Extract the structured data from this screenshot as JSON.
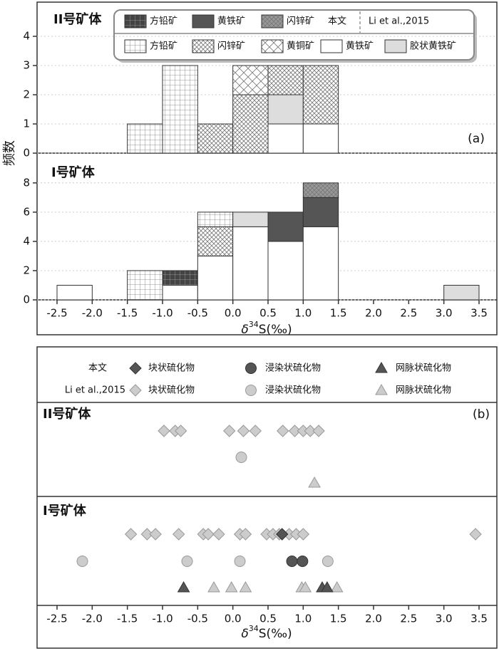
{
  "chart_data": [
    {
      "type": "histogram",
      "label": "(a)",
      "ylabel": "频数",
      "xlabel": {
        "symbol": "δ",
        "sup": "34",
        "unit": "S(‰)"
      },
      "sources": [
        "本文",
        "Li et al.,2015"
      ],
      "bins": [
        -2.5,
        -2,
        -1.5,
        -1,
        -0.5,
        0,
        0.5,
        1,
        1.5,
        2,
        2.5,
        3,
        3.5
      ],
      "xlim": [
        -2.8,
        3.75
      ],
      "xticks": [
        -2.5,
        {
          "value": -2,
          "label": "-2.0"
        },
        -1.5,
        {
          "value": -1,
          "label": "-1.0"
        },
        -0.5,
        {
          "value": 0,
          "label": "0.0"
        },
        0.5,
        {
          "value": 1,
          "label": "1.0"
        },
        1.5,
        {
          "value": 2,
          "label": "2.0"
        },
        2.5,
        {
          "value": 3,
          "label": "3.0"
        },
        3.5
      ],
      "grid": true,
      "series": [
        {
          "name": "方铅矿",
          "source": 0,
          "color": "#444444",
          "pattern": "grid"
        },
        {
          "name": "黄铁矿",
          "source": 0,
          "color": "#555555",
          "pattern": "solid"
        },
        {
          "name": "闪锌矿",
          "source": 0,
          "color": "#999999",
          "pattern": "xdense"
        },
        {
          "name": "方铅矿",
          "source": 1,
          "color": "#ffffff",
          "pattern": "grid"
        },
        {
          "name": "闪锌矿",
          "source": 1,
          "color": "#ffffff",
          "pattern": "xdense"
        },
        {
          "name": "黄铜矿",
          "source": 1,
          "color": "#ffffff",
          "pattern": "xsparse"
        },
        {
          "name": "黄铁矿",
          "source": 1,
          "color": "#ffffff",
          "pattern": "solid"
        },
        {
          "name": "胶状黄铁矿",
          "source": 1,
          "color": "#dddddd",
          "pattern": "solid"
        }
      ],
      "panels": [
        {
          "title": "II号矿体",
          "ylim": [
            0,
            5
          ],
          "yticks": [
            0,
            1,
            2,
            3,
            4
          ],
          "series": [
            {
              "values": [
                0,
                0,
                0,
                0,
                0,
                0,
                0,
                0,
                0,
                0,
                0,
                0
              ]
            },
            {
              "values": [
                0,
                0,
                0,
                0,
                0,
                0,
                0,
                0,
                0,
                0,
                0,
                0
              ]
            },
            {
              "values": [
                0,
                0,
                0,
                0,
                0,
                0,
                0,
                0,
                0,
                0,
                0,
                0
              ]
            },
            {
              "values": [
                0,
                0,
                1,
                3,
                0,
                0,
                0,
                0,
                0,
                0,
                0,
                0
              ]
            },
            {
              "values": [
                0,
                0,
                0,
                0,
                1,
                2,
                1,
                2,
                0,
                0,
                0,
                0
              ]
            },
            {
              "values": [
                0,
                0,
                0,
                0,
                0,
                1,
                0,
                0,
                0,
                0,
                0,
                0
              ]
            },
            {
              "values": [
                0,
                0,
                0,
                0,
                0,
                0,
                1,
                1,
                0,
                0,
                0,
                0
              ]
            },
            {
              "values": [
                0,
                0,
                0,
                0,
                0,
                0,
                1,
                0,
                0,
                0,
                0,
                0
              ]
            }
          ]
        },
        {
          "title": "I号矿体",
          "ylim": [
            0,
            9.5
          ],
          "yticks": [
            0,
            2,
            4,
            6,
            8
          ],
          "series": [
            {
              "values": [
                0,
                0,
                0,
                1,
                0,
                0,
                0,
                0,
                0,
                0,
                0,
                0
              ]
            },
            {
              "values": [
                0,
                0,
                0,
                0,
                0,
                0,
                2,
                2,
                0,
                0,
                0,
                0
              ]
            },
            {
              "values": [
                0,
                0,
                0,
                0,
                0,
                0,
                0,
                1,
                0,
                0,
                0,
                0
              ]
            },
            {
              "values": [
                0,
                0,
                2,
                0,
                1,
                0,
                0,
                0,
                0,
                0,
                0,
                0
              ]
            },
            {
              "values": [
                0,
                0,
                0,
                0,
                2,
                0,
                0,
                0,
                0,
                0,
                0,
                0
              ]
            },
            {
              "values": [
                0,
                0,
                0,
                0,
                0,
                0,
                0,
                0,
                0,
                0,
                0,
                0
              ]
            },
            {
              "values": [
                1,
                0,
                0,
                1,
                3,
                5,
                4,
                5,
                0,
                0,
                0,
                0
              ]
            },
            {
              "values": [
                0,
                0,
                0,
                0,
                0,
                1,
                0,
                0,
                0,
                0,
                0,
                1
              ]
            }
          ]
        }
      ]
    },
    {
      "type": "strip",
      "label": "(b)",
      "xlabel": {
        "symbol": "δ",
        "sup": "34",
        "unit": "S(‰)"
      },
      "sources": [
        "本文",
        "Li et al.,2015"
      ],
      "xlim": [
        -2.8,
        3.75
      ],
      "xticks": [
        -2.5,
        {
          "value": -2,
          "label": "-2.0"
        },
        -1.5,
        {
          "value": -1,
          "label": "-1.0"
        },
        -0.5,
        {
          "value": 0,
          "label": "0.0"
        },
        0.5,
        {
          "value": 1,
          "label": "1.0"
        },
        1.5,
        {
          "value": 2,
          "label": "2.0"
        },
        2.5,
        {
          "value": 3,
          "label": "3.0"
        },
        3.5
      ],
      "series": [
        {
          "name": "块状硫化物",
          "source": 0,
          "marker": "diamond",
          "color": "#555555"
        },
        {
          "name": "浸染状硫化物",
          "source": 0,
          "marker": "circle",
          "color": "#555555"
        },
        {
          "name": "网脉状硫化物",
          "source": 0,
          "marker": "triangle",
          "color": "#555555"
        },
        {
          "name": "块状硫化物",
          "source": 1,
          "marker": "diamond",
          "color": "#cccccc"
        },
        {
          "name": "浸染状硫化物",
          "source": 1,
          "marker": "circle",
          "color": "#cccccc"
        },
        {
          "name": "网脉状硫化物",
          "source": 1,
          "marker": "triangle",
          "color": "#cccccc"
        }
      ],
      "panels": [
        {
          "title": "II号矿体",
          "series": [
            {
              "values": []
            },
            {
              "values": []
            },
            {
              "values": []
            },
            {
              "values": [
                -0.98,
                -0.82,
                -0.74,
                -0.05,
                0.15,
                0.32,
                0.71,
                0.88,
                1.0,
                1.1,
                1.22
              ]
            },
            {
              "values": [
                0.12
              ]
            },
            {
              "values": [
                1.16
              ]
            }
          ]
        },
        {
          "title": "I号矿体",
          "series": [
            {
              "values": [
                0.7
              ]
            },
            {
              "values": [
                0.84,
                0.99
              ]
            },
            {
              "values": [
                -0.7,
                1.27,
                1.34
              ]
            },
            {
              "values": [
                -1.45,
                -1.22,
                -1.1,
                -0.77,
                -0.42,
                -0.35,
                -0.2,
                0.1,
                0.18,
                0.48,
                0.57,
                0.66,
                0.8,
                0.9,
                1.0,
                3.45
              ]
            },
            {
              "values": [
                -2.14,
                -0.65,
                0.1,
                1.35
              ]
            },
            {
              "values": [
                -0.27,
                -0.02,
                0.18,
                0.98,
                1.03,
                1.48
              ]
            }
          ]
        }
      ]
    }
  ]
}
